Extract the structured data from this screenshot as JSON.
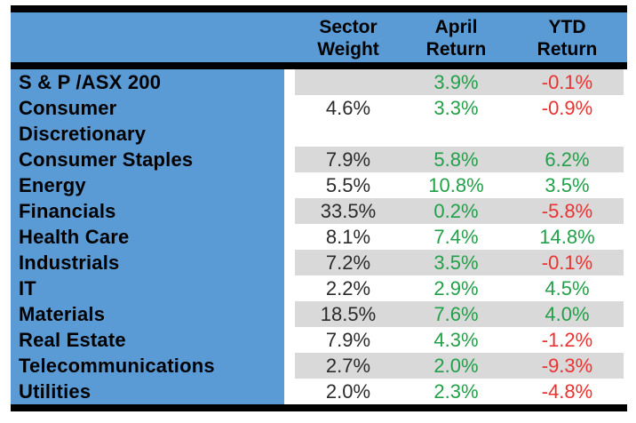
{
  "title": "Sector weights and returns table",
  "colors": {
    "header_bg": "#5B9BD5",
    "stripe_bg": "#D9D9D9",
    "row_bg": "#FFFFFF",
    "border": "#000000",
    "header_text": "#000000",
    "label_text": "#000000",
    "weight_text": "#2B2B2B",
    "positive": "#22A049",
    "negative": "#ED3130"
  },
  "table": {
    "headers": [
      "Sector\nWeight",
      "April\nReturn",
      "YTD\nReturn"
    ],
    "rows": [
      {
        "label": "S & P /ASX 200",
        "weight": "",
        "april": "3.9%",
        "ytd": "-0.1%"
      },
      {
        "label": "Consumer\nDiscretionary",
        "weight": "4.6%",
        "april": "3.3%",
        "ytd": "-0.9%"
      },
      {
        "label": "Consumer Staples",
        "weight": "7.9%",
        "april": "5.8%",
        "ytd": "6.2%"
      },
      {
        "label": "Energy",
        "weight": "5.5%",
        "april": "10.8%",
        "ytd": "3.5%"
      },
      {
        "label": "Financials",
        "weight": "33.5%",
        "april": "0.2%",
        "ytd": "-5.8%"
      },
      {
        "label": "Health Care",
        "weight": "8.1%",
        "april": "7.4%",
        "ytd": "14.8%"
      },
      {
        "label": "Industrials",
        "weight": "7.2%",
        "april": "3.5%",
        "ytd": "-0.1%"
      },
      {
        "label": "IT",
        "weight": "2.2%",
        "april": "2.9%",
        "ytd": "4.5%"
      },
      {
        "label": "Materials",
        "weight": "18.5%",
        "april": "7.6%",
        "ytd": "4.0%"
      },
      {
        "label": "Real Estate",
        "weight": "7.9%",
        "april": "4.3%",
        "ytd": "-1.2%"
      },
      {
        "label": "Telecommunications",
        "weight": "2.7%",
        "april": "2.0%",
        "ytd": "-9.3%"
      },
      {
        "label": "Utilities",
        "weight": "2.0%",
        "april": "2.3%",
        "ytd": "-4.8%"
      }
    ]
  },
  "chart_data": {
    "type": "table",
    "columns": [
      "",
      "Sector Weight",
      "April Return",
      "YTD Return"
    ],
    "units": "%",
    "rows": [
      [
        "S & P /ASX 200",
        null,
        3.9,
        -0.1
      ],
      [
        "Consumer Discretionary",
        4.6,
        3.3,
        -0.9
      ],
      [
        "Consumer Staples",
        7.9,
        5.8,
        6.2
      ],
      [
        "Energy",
        5.5,
        10.8,
        3.5
      ],
      [
        "Financials",
        33.5,
        0.2,
        -5.8
      ],
      [
        "Health Care",
        8.1,
        7.4,
        14.8
      ],
      [
        "Industrials",
        7.2,
        3.5,
        -0.1
      ],
      [
        "IT",
        2.2,
        2.9,
        4.5
      ],
      [
        "Materials",
        18.5,
        7.6,
        4.0
      ],
      [
        "Real Estate",
        7.9,
        4.3,
        -1.2
      ],
      [
        "Telecommunications",
        2.7,
        2.0,
        -9.3
      ],
      [
        "Utilities",
        2.0,
        2.3,
        -4.8
      ]
    ],
    "layout_hints": {
      "zebra_stripes": true,
      "value_color_rule": "positive values green, negative values red",
      "label_column_background": "blue",
      "thick_black_rules": [
        "top",
        "below header",
        "bottom"
      ]
    }
  }
}
